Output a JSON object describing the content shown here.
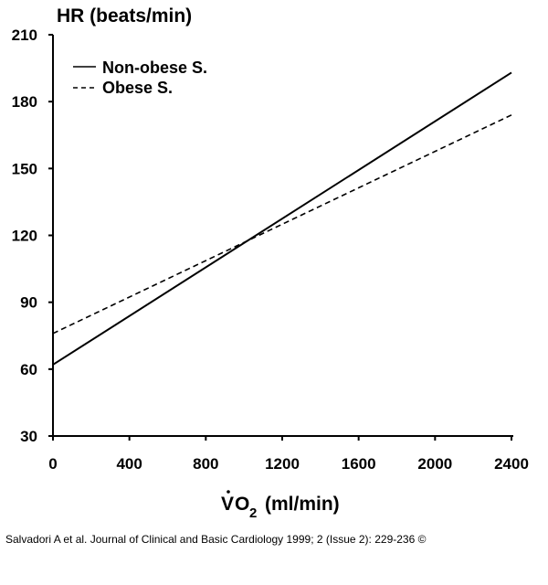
{
  "chart_data": {
    "type": "line",
    "ylabel": "HR (beats/min)",
    "xlabel_prefix": "V",
    "xlabel_sub": "2",
    "xlabel_o": "O",
    "xlabel_suffix": "(ml/min)",
    "xlim": [
      0,
      2400
    ],
    "ylim": [
      30,
      210
    ],
    "x_ticks": [
      0,
      400,
      800,
      1200,
      1600,
      2000,
      2400
    ],
    "y_ticks": [
      30,
      60,
      90,
      120,
      150,
      180,
      210
    ],
    "legend_position": "top-left",
    "series": [
      {
        "name": "Non-obese S.",
        "style": "solid",
        "x": [
          0,
          2400
        ],
        "y": [
          62,
          193
        ]
      },
      {
        "name": "Obese S.",
        "style": "dashed",
        "x": [
          0,
          2400
        ],
        "y": [
          76,
          174
        ]
      }
    ]
  },
  "caption": "Salvadori A et al. Journal of Clinical and Basic Cardiology 1999; 2 (Issue 2): 229-236 ©"
}
